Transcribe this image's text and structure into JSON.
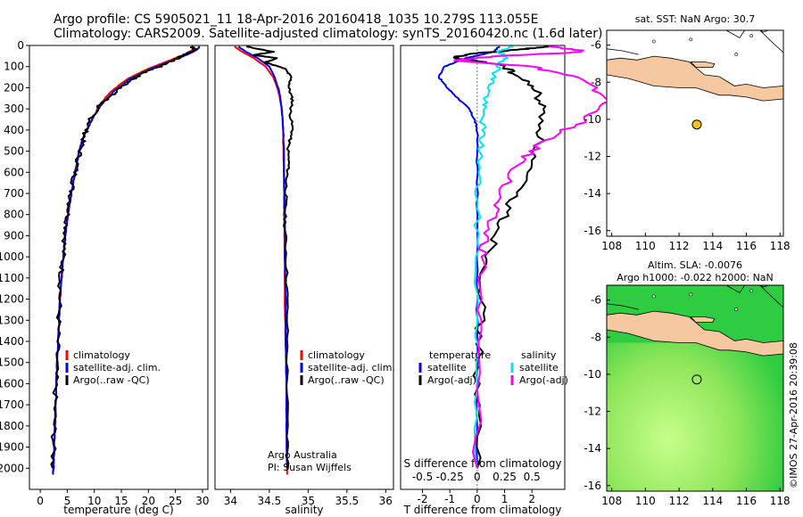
{
  "header": {
    "line1": "Argo profile: CS 5905021_11 18-Apr-2016 20160418_1035 10.279S 113.055E",
    "line2": "Climatology: CARS2009. Satellite-adjusted climatology: synTS_20160420.nc (1.6d later)"
  },
  "colors": {
    "climatology": "#ff0000",
    "satellite": "#0000ff",
    "argo": "#000000",
    "argo_salinity_diff": "#ff00ff",
    "satellite_salinity_diff": "#00e5ee",
    "land": "#f5c8a0",
    "ocean": "#ffffff",
    "sla_low": "#2ecc40",
    "sla_high": "#c6ff8a",
    "marker": "#f0c419"
  },
  "chart_data": [
    {
      "type": "line",
      "panel": "temperature",
      "xlabel": "temperature (deg C)",
      "ylabel": "",
      "xlim": [
        -2,
        31
      ],
      "ylim": [
        2100,
        0
      ],
      "xticks": [
        0,
        5,
        10,
        15,
        20,
        25,
        30
      ],
      "yticks": [
        0,
        100,
        200,
        300,
        400,
        500,
        600,
        700,
        800,
        900,
        1000,
        1100,
        1200,
        1300,
        1400,
        1500,
        1600,
        1700,
        1800,
        1900,
        2000
      ],
      "legend": [
        "climatology",
        "satellite-adj. clim.",
        "Argo(..raw -QC)"
      ],
      "series": [
        {
          "name": "climatology",
          "color": "#ff0000",
          "x": [
            28.5,
            28.2,
            27,
            24,
            20,
            16,
            13,
            11,
            10,
            9,
            8,
            7.2,
            6.6,
            6,
            5.5,
            5,
            4.6,
            4.2,
            3.9,
            3.6,
            3.4,
            3.1,
            2.9,
            2.7,
            2.5,
            2.4
          ],
          "y": [
            5,
            20,
            40,
            70,
            110,
            160,
            220,
            280,
            330,
            380,
            430,
            500,
            580,
            660,
            740,
            820,
            920,
            1020,
            1120,
            1220,
            1350,
            1500,
            1650,
            1800,
            1950,
            2030
          ]
        },
        {
          "name": "satellite-adj. clim.",
          "color": "#0000ff",
          "x": [
            29.5,
            29,
            27.5,
            24.5,
            20.5,
            16.5,
            13.5,
            11.3,
            10,
            9,
            8,
            7.2,
            6.6,
            6,
            5.5,
            5,
            4.6,
            4.2,
            3.9,
            3.6,
            3.4,
            3.1,
            2.9,
            2.7,
            2.5,
            2.4
          ],
          "y": [
            5,
            20,
            40,
            70,
            110,
            160,
            220,
            280,
            330,
            380,
            430,
            500,
            580,
            660,
            740,
            820,
            920,
            1020,
            1120,
            1220,
            1350,
            1500,
            1650,
            1800,
            1950,
            2030
          ]
        },
        {
          "name": "Argo(..raw -QC)",
          "color": "#000000",
          "x": [
            28,
            28.8,
            27,
            25,
            22.5,
            19,
            16.5,
            14.5,
            12.5,
            10.7,
            9.5,
            8.5,
            7.8,
            7,
            6.3,
            5.7,
            5.1,
            4.6,
            4.2,
            3.8,
            3.5,
            3.2,
            2.9,
            2.7,
            2.5,
            2.3
          ],
          "y": [
            5,
            20,
            40,
            65,
            95,
            130,
            170,
            210,
            250,
            290,
            340,
            400,
            460,
            540,
            620,
            700,
            800,
            900,
            1000,
            1100,
            1250,
            1400,
            1550,
            1700,
            1850,
            2000
          ]
        }
      ]
    },
    {
      "type": "line",
      "panel": "salinity",
      "xlabel": "salinity",
      "xlim": [
        33.8,
        36.1
      ],
      "ylim": [
        2100,
        0
      ],
      "xticks": [
        34,
        34.5,
        35,
        35.5,
        36
      ],
      "legend": [
        "climatology",
        "satellite-adj. clim.",
        "Argo(..raw -QC)"
      ],
      "annotation": [
        "Argo Australia",
        "PI: Susan Wijffels"
      ],
      "series": [
        {
          "name": "climatology",
          "color": "#ff0000",
          "x": [
            34.05,
            34.15,
            34.3,
            34.45,
            34.55,
            34.62,
            34.66,
            34.68,
            34.68,
            34.69,
            34.69,
            34.7,
            34.7,
            34.71,
            34.72,
            34.72,
            34.73
          ],
          "y": [
            5,
            30,
            60,
            100,
            150,
            220,
            300,
            400,
            500,
            650,
            800,
            1000,
            1200,
            1400,
            1600,
            1800,
            2030
          ]
        },
        {
          "name": "satellite-adj. clim.",
          "color": "#0000ff",
          "x": [
            34.1,
            34.2,
            34.35,
            34.5,
            34.57,
            34.63,
            34.66,
            34.68,
            34.69,
            34.69,
            34.7,
            34.7,
            34.71,
            34.71,
            34.72,
            34.72,
            34.73
          ],
          "y": [
            5,
            30,
            60,
            100,
            150,
            220,
            300,
            400,
            500,
            650,
            800,
            1000,
            1200,
            1400,
            1600,
            1800,
            2000
          ]
        },
        {
          "name": "Argo(..raw -QC)",
          "color": "#000000",
          "x": [
            34.2,
            34.55,
            34.3,
            34.6,
            34.45,
            34.7,
            34.78,
            34.75,
            34.8,
            34.77,
            34.8,
            34.74,
            34.75,
            34.72,
            34.71,
            34.7,
            34.72,
            34.73,
            34.73,
            34.73,
            34.74
          ],
          "y": [
            5,
            30,
            45,
            60,
            80,
            110,
            150,
            200,
            260,
            320,
            400,
            480,
            560,
            640,
            740,
            850,
            1000,
            1200,
            1500,
            1800,
            2000
          ]
        }
      ]
    },
    {
      "type": "line",
      "panel": "difference",
      "xlabel": "T difference from climatology",
      "xlabel_top": "S difference from climatology",
      "xlim": [
        -2.8,
        3.2
      ],
      "xticks": [
        -2,
        -1,
        0,
        1,
        2
      ],
      "xticks_salinity": [
        -0.5,
        -0.25,
        0,
        0.25,
        0.5
      ],
      "ylim": [
        2100,
        0
      ],
      "legend_temperature": [
        "temperature",
        "satellite",
        "Argo(-adj)"
      ],
      "legend_salinity": [
        "salinity",
        "satellite",
        "Argo(-adj)"
      ],
      "series": [
        {
          "name": "satellite",
          "group": "temperature",
          "color": "#0000ff",
          "x": [
            0.8,
            0.6,
            -0.4,
            -1.2,
            -1.4,
            -1.1,
            -0.7,
            -0.3,
            -0.1,
            0,
            0,
            0,
            0,
            0
          ],
          "y": [
            5,
            30,
            60,
            100,
            150,
            200,
            250,
            300,
            350,
            400,
            600,
            1000,
            1500,
            2000
          ]
        },
        {
          "name": "Argo(-adj)",
          "group": "temperature",
          "color": "#000000",
          "x": [
            2.5,
            1.5,
            -0.3,
            -0.9,
            0.9,
            1.4,
            2.1,
            2.4,
            2.3,
            1.8,
            1.2,
            0.7,
            0.3,
            0.1,
            0,
            0
          ],
          "y": [
            5,
            20,
            40,
            60,
            90,
            140,
            200,
            300,
            450,
            600,
            750,
            900,
            1050,
            1300,
            1600,
            2000
          ]
        },
        {
          "name": "satellite",
          "group": "salinity",
          "color": "#00e5ee",
          "x": [
            0.3,
            0.2,
            0.25,
            0.2,
            0.15,
            0.1,
            0.05,
            0.05,
            0.03,
            0,
            0,
            0,
            0
          ],
          "y": [
            5,
            30,
            60,
            100,
            150,
            220,
            300,
            400,
            500,
            700,
            1000,
            1500,
            2000
          ]
        },
        {
          "name": "Argo(-adj)",
          "group": "salinity",
          "color": "#ff00ff",
          "x": [
            0.7,
            1.0,
            0.2,
            -0.2,
            0.5,
            0.9,
            1.2,
            1.0,
            0.6,
            0.4,
            0.2,
            0.1,
            0.05,
            0,
            0
          ],
          "y": [
            5,
            30,
            50,
            70,
            100,
            150,
            250,
            350,
            450,
            550,
            700,
            850,
            1000,
            1400,
            2000
          ]
        }
      ]
    },
    {
      "type": "map",
      "panel": "sst_map",
      "title": "sat. SST: NaN Argo: 30.7",
      "xticks": [
        108,
        110,
        112,
        114,
        116,
        118
      ],
      "yticks": [
        -6,
        -8,
        -10,
        -12,
        -14,
        -16
      ],
      "xlim": [
        107.7,
        118.2
      ],
      "ylim": [
        -16.3,
        -5.2
      ],
      "argo_position": {
        "lon": 113.055,
        "lat": -10.279
      }
    },
    {
      "type": "map",
      "panel": "sla_map",
      "title_line1": "Altim. SLA: -0.0076",
      "title_line2": "Argo h1000: -0.022 h2000: NaN",
      "xticks": [
        108,
        110,
        112,
        114,
        116,
        118
      ],
      "yticks": [
        -6,
        -8,
        -10,
        -12,
        -14,
        -16
      ],
      "xlim": [
        107.7,
        118.2
      ],
      "ylim": [
        -16.3,
        -5.2
      ],
      "argo_position": {
        "lon": 113.055,
        "lat": -10.279
      }
    }
  ],
  "credit": "©IMOS 27-Apr-2016 20:39:08"
}
